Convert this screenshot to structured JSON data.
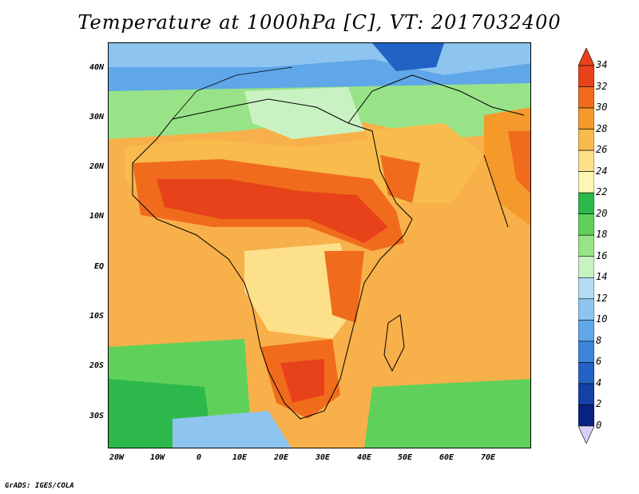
{
  "title": "Temperature at 1000hPa [C], VT: 2017032400",
  "footer": "GrADS: IGES/COLA",
  "lat_ticks": [
    "40N",
    "30N",
    "20N",
    "10N",
    "EQ",
    "10S",
    "20S",
    "30S"
  ],
  "lon_ticks": [
    "20W",
    "10W",
    "0",
    "10E",
    "20E",
    "30E",
    "40E",
    "50E",
    "60E",
    "70E"
  ],
  "colorbar": {
    "labels": [
      "34",
      "32",
      "30",
      "28",
      "26",
      "24",
      "22",
      "20",
      "18",
      "16",
      "14",
      "12",
      "10",
      "8",
      "6",
      "4",
      "2",
      "0"
    ],
    "colors": [
      "#e8421a",
      "#f06c1c",
      "#f59a2a",
      "#f8bb4c",
      "#fce08a",
      "#fef7b4",
      "#2db84b",
      "#5fd15a",
      "#98e388",
      "#c9f2c2",
      "#b4dcf5",
      "#8ec5f0",
      "#5fa7e8",
      "#3b86d9",
      "#2262c4",
      "#1341a8",
      "#0a227f"
    ],
    "top_arrow_color": "#e8421a",
    "bottom_arrow_color": "#d6d0f5"
  },
  "legend": {
    "scale": "temperature"
  }
}
